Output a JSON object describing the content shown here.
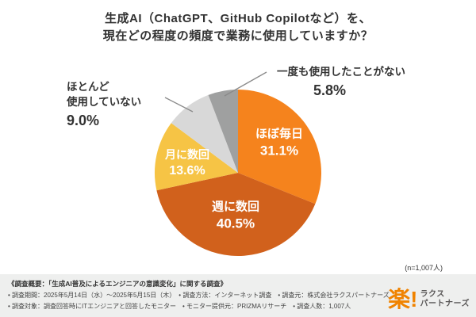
{
  "title": {
    "line1": "生成AI（ChatGPT、GitHub Copilotなど）を、",
    "line2": "現在どの程度の頻度で業務に使用していますか？"
  },
  "chart_data": {
    "type": "pie",
    "title": "生成AI（ChatGPT、GitHub Copilotなど）を、現在どの程度の頻度で業務に使用していますか？",
    "unit": "%",
    "sample_note": "(n=1,007人)",
    "start_angle_deg": -90,
    "direction": "clockwise",
    "series": [
      {
        "name": "ほぼ毎日",
        "value": 31.1,
        "display": "31.1%",
        "color": "#f5831d"
      },
      {
        "name": "週に数回",
        "value": 40.5,
        "display": "40.5%",
        "color": "#d1611c"
      },
      {
        "name": "月に数回",
        "value": 13.6,
        "display": "13.6%",
        "color": "#f6c445"
      },
      {
        "name": "ほとんど使用していない",
        "value": 9.0,
        "display": "9.0%",
        "color": "#d8d8d8"
      },
      {
        "name": "一度も使用したことがない",
        "value": 5.8,
        "display": "5.8%",
        "color": "#9fa0a0"
      }
    ]
  },
  "labels": {
    "rarely_line1": "ほとんど",
    "rarely_line2": "使用していない"
  },
  "note": "(n=1,007人)",
  "footer": {
    "line1": "《調査概要：「生成AI普及によるエンジニアの意識変化」に関する調査》",
    "line2": "• 調査期間：2025年5月14日（水）〜2025年5月15日（木）　• 調査方法：インターネット調査　• 調査元：株式会社ラクスパートナーズ",
    "line3": "• 調査対象：調査回答時にITエンジニアと回答したモニター　• モニター提供元：PRIZMAリサーチ　• 調査人数：1,007人"
  },
  "logo": {
    "mark": "楽!",
    "name_top": "ラクス",
    "name_bottom": "パートナーズ"
  }
}
